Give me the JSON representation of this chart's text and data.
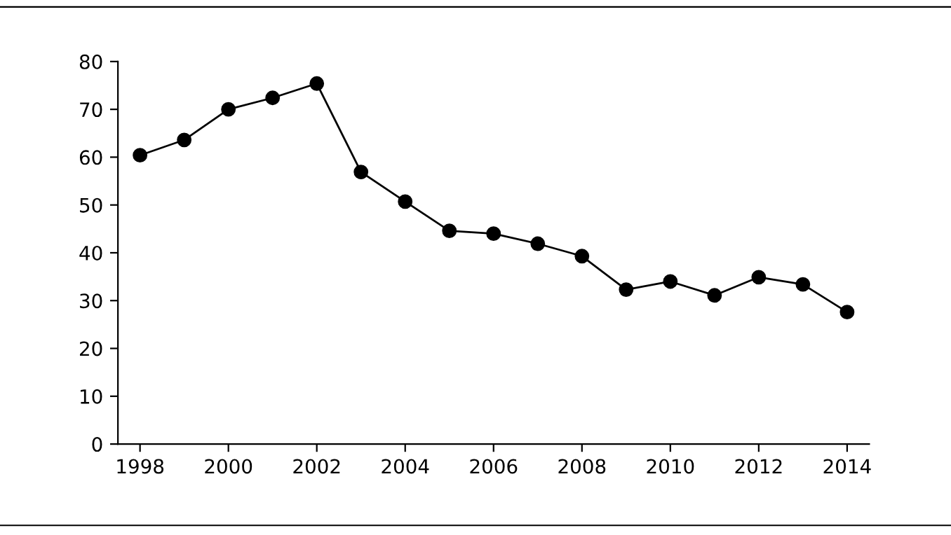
{
  "chart_data": {
    "type": "line",
    "x": [
      1998,
      1999,
      2000,
      2001,
      2002,
      2003,
      2004,
      2005,
      2006,
      2007,
      2008,
      2009,
      2010,
      2011,
      2012,
      2013,
      2014
    ],
    "series": [
      {
        "color": "#000000",
        "values": [
          60.4,
          63.6,
          70,
          72.4,
          75.4,
          56.9,
          50.7,
          44.6,
          44,
          41.9,
          39.3,
          32.3,
          34,
          31.1,
          34.9,
          33.4,
          27.6
        ]
      }
    ],
    "xlim": [
      1997.5,
      2014.5
    ],
    "xticks": [
      1998,
      2000,
      2002,
      2004,
      2006,
      2008,
      2010,
      2012,
      2014
    ],
    "ylim": [
      0,
      80
    ],
    "yticks": [
      0,
      10,
      20,
      30,
      40,
      50,
      60,
      70,
      80
    ],
    "marker": "circle",
    "line_style": "solid",
    "grid": false,
    "legend": false
  }
}
